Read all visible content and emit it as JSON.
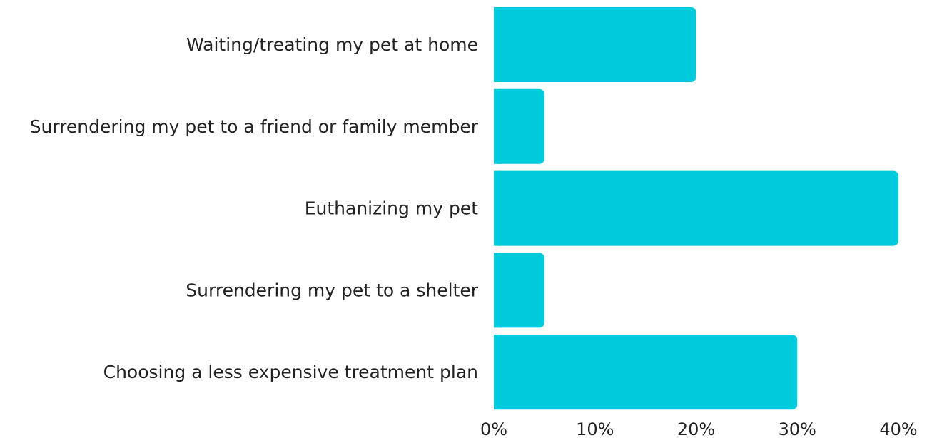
{
  "chart_data": {
    "type": "bar",
    "orientation": "horizontal",
    "categories": [
      "Waiting/treating my pet at home",
      "Surrendering my pet to a friend or family member",
      "Euthanizing my pet",
      "Surrendering my pet to a shelter",
      "Choosing a less expensive treatment plan"
    ],
    "values": [
      20,
      5,
      40,
      5,
      30
    ],
    "xlim": [
      0,
      40
    ],
    "xticks": [
      0,
      10,
      20,
      30,
      40
    ],
    "tick_labels": [
      "0%",
      "10%",
      "20%",
      "30%",
      "40%"
    ],
    "title": "",
    "xlabel": "",
    "ylabel": "",
    "grid": false,
    "bar_color": "#00CBDD"
  }
}
